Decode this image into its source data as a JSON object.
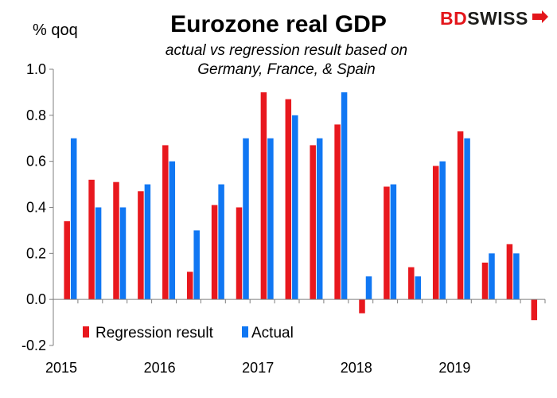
{
  "chart_data": {
    "type": "bar",
    "title": "Eurozone real GDP",
    "subtitle_line1": "actual vs regression result based on",
    "subtitle_line2": "Germany, France, & Spain",
    "ylabel": "% qoq",
    "ylim": [
      -0.2,
      1.0
    ],
    "yticks": [
      "1.0",
      "0.8",
      "0.6",
      "0.4",
      "0.2",
      "0.0",
      "-0.2"
    ],
    "ytick_values": [
      1.0,
      0.8,
      0.6,
      0.4,
      0.2,
      0.0,
      -0.2
    ],
    "year_labels": [
      "2015",
      "2016",
      "2017",
      "2018",
      "2019"
    ],
    "categories": [
      "2015Q1",
      "2015Q2",
      "2015Q3",
      "2015Q4",
      "2016Q1",
      "2016Q2",
      "2016Q3",
      "2016Q4",
      "2017Q1",
      "2017Q2",
      "2017Q3",
      "2017Q4",
      "2018Q1",
      "2018Q2",
      "2018Q3",
      "2018Q4",
      "2019Q1",
      "2019Q2",
      "2019Q3",
      "2019Q4"
    ],
    "series": [
      {
        "name": "Regression result",
        "color": "#e8181e",
        "values": [
          0.34,
          0.52,
          0.51,
          0.47,
          0.67,
          0.12,
          0.41,
          0.4,
          0.9,
          0.87,
          0.67,
          0.76,
          -0.06,
          0.49,
          0.14,
          0.58,
          0.73,
          0.16,
          0.24,
          -0.09
        ]
      },
      {
        "name": "Actual",
        "color": "#1077f3",
        "values": [
          0.7,
          0.4,
          0.4,
          0.5,
          0.6,
          0.3,
          0.5,
          0.7,
          0.7,
          0.8,
          0.7,
          0.9,
          0.1,
          0.5,
          0.1,
          0.6,
          0.7,
          0.2,
          0.2,
          null
        ]
      }
    ],
    "legend": [
      "Regression result",
      "Actual"
    ],
    "legend_position": "bottom-left"
  },
  "logo": {
    "part1": "BD",
    "part2": "SWISS",
    "colors": {
      "red": "#e3161b",
      "dark": "#1d1d1b"
    }
  }
}
